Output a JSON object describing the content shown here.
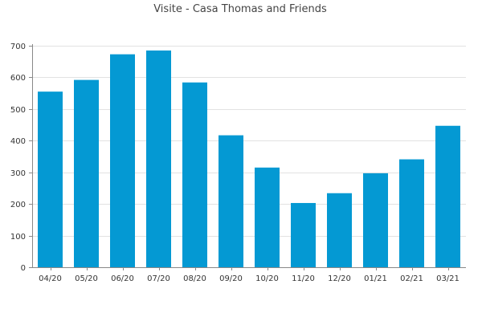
{
  "chart_data": {
    "type": "bar",
    "title": "Visite - Casa Thomas and Friends",
    "xlabel": "",
    "ylabel": "",
    "categories": [
      "04/20",
      "05/20",
      "06/20",
      "07/20",
      "08/20",
      "09/20",
      "10/20",
      "11/20",
      "12/20",
      "01/21",
      "02/21",
      "03/21"
    ],
    "values": [
      555,
      592,
      673,
      685,
      584,
      417,
      315,
      203,
      234,
      297,
      341,
      447
    ],
    "ylim": [
      0,
      700
    ],
    "yticks": [
      0,
      100,
      200,
      300,
      400,
      500,
      600,
      700
    ],
    "grid": true,
    "legend": "none",
    "colors": {
      "bar": "#0499d3",
      "grid": "#e2e2e2",
      "axis": "#888888"
    }
  }
}
